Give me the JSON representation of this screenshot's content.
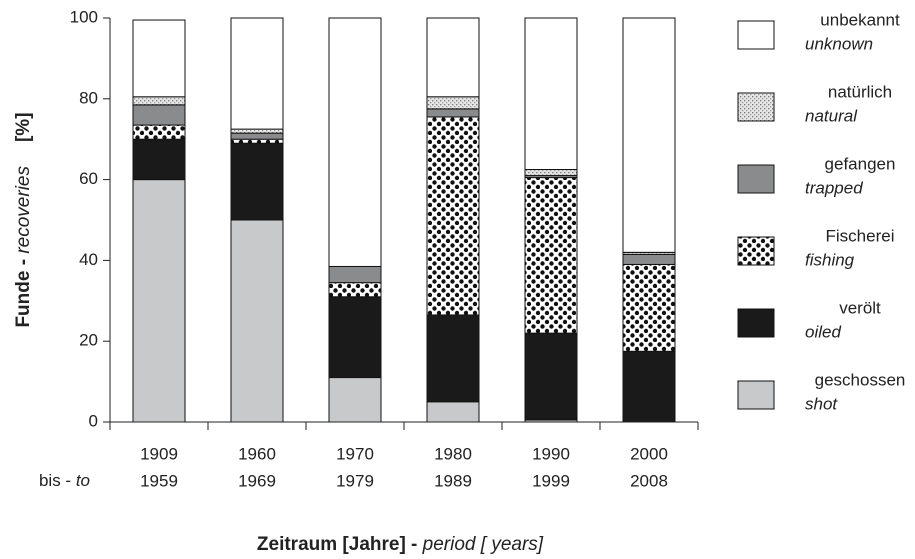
{
  "chart_data": {
    "type": "stacked_bar",
    "y_label": [
      "Funde - ",
      "recoveries",
      "[%]"
    ],
    "x_label": [
      "Zeitraum [Jahre] - ",
      "period [ years]"
    ],
    "row_label": [
      "bis - ",
      "to"
    ],
    "categories": [
      [
        "1909",
        "1959"
      ],
      [
        "1960",
        "1969"
      ],
      [
        "1970",
        "1979"
      ],
      [
        "1980",
        "1989"
      ],
      [
        "1990",
        "1999"
      ],
      [
        "2000",
        "2008"
      ]
    ],
    "series": [
      {
        "name": "geschossen",
        "name_en": "shot",
        "color": "#c8c9cb",
        "pattern": null,
        "values": [
          60,
          50,
          11,
          5,
          0.5,
          0
        ]
      },
      {
        "name": "verölt",
        "name_en": "oiled",
        "color": "#1a1a1a",
        "pattern": null,
        "values": [
          10,
          19,
          20,
          21.5,
          21.5,
          17.5
        ]
      },
      {
        "name": "Fischerei",
        "name_en": "fishing",
        "color": "#ffffff",
        "pattern": "dots",
        "values": [
          3.5,
          1,
          3.5,
          49,
          38.5,
          21.5
        ]
      },
      {
        "name": "gefangen",
        "name_en": "trapped",
        "color": "#8a8b8d",
        "pattern": null,
        "values": [
          5,
          1.5,
          4,
          2,
          0.5,
          2.5
        ]
      },
      {
        "name": "natürlich",
        "name_en": "natural",
        "color": "#d8d8d8",
        "pattern": "stipple",
        "values": [
          2,
          1,
          0,
          3,
          1.5,
          0.5
        ]
      },
      {
        "name": "unbekannt",
        "name_en": "unknown",
        "color": "#ffffff",
        "pattern": null,
        "values": [
          19,
          27.5,
          61.5,
          19.5,
          37.5,
          58
        ]
      }
    ],
    "ylim": [
      0,
      100
    ],
    "yticks": [
      0,
      20,
      40,
      60,
      80,
      100
    ],
    "legend": "right"
  }
}
